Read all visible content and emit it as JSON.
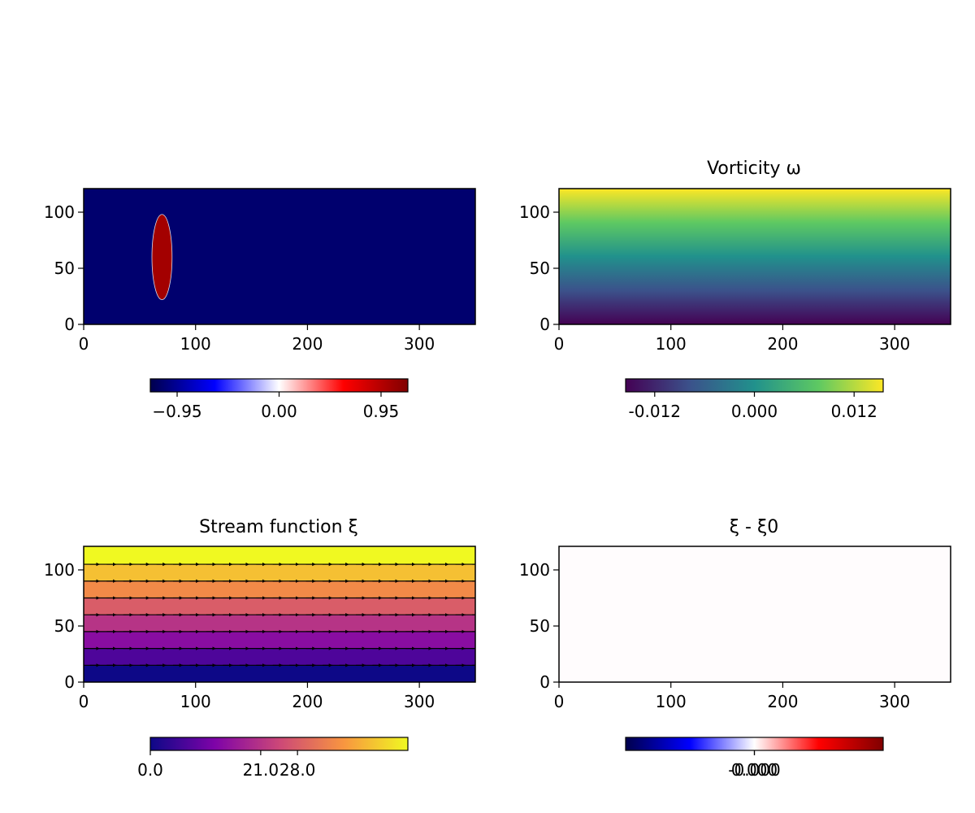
{
  "chart_data": [
    {
      "type": "heatmap",
      "title": "",
      "xlabel": "",
      "ylabel": "",
      "xlim": [
        0,
        350
      ],
      "ylim": [
        0,
        121
      ],
      "xticks": [
        0,
        100,
        200,
        300
      ],
      "yticks": [
        0,
        50,
        100
      ],
      "xtick_labels": [
        "0",
        "100",
        "200",
        "300"
      ],
      "ytick_labels": [
        "0",
        "50",
        "100"
      ],
      "background_value": -0.95,
      "ellipse": {
        "center_x": 70,
        "center_y": 60,
        "semi_x": 9,
        "semi_y": 38,
        "value": 0.95
      },
      "colormap": "seismic",
      "colorbar": {
        "range": [
          -1.2,
          1.2
        ],
        "ticks": [
          -0.95,
          0.0,
          0.95
        ],
        "tick_labels": [
          "−0.95",
          "0.00",
          "0.95"
        ]
      }
    },
    {
      "type": "heatmap",
      "title": "Vorticity ω",
      "xlabel": "",
      "ylabel": "",
      "xlim": [
        0,
        350
      ],
      "ylim": [
        0,
        121
      ],
      "xticks": [
        0,
        100,
        200,
        300
      ],
      "yticks": [
        0,
        50,
        100
      ],
      "xtick_labels": [
        "0",
        "100",
        "200",
        "300"
      ],
      "ytick_labels": [
        "0",
        "50",
        "100"
      ],
      "value_range": [
        -0.0155,
        0.0155
      ],
      "varies_along": "y",
      "colormap": "viridis",
      "colorbar": {
        "range": [
          -0.0155,
          0.0155
        ],
        "ticks": [
          -0.012,
          0.0,
          0.012
        ],
        "tick_labels": [
          "-0.012",
          "0.000",
          "0.012"
        ]
      }
    },
    {
      "type": "heatmap",
      "title": "Stream function ξ",
      "xlabel": "",
      "ylabel": "",
      "xlim": [
        0,
        350
      ],
      "ylim": [
        0,
        121
      ],
      "xticks": [
        0,
        100,
        200,
        300
      ],
      "yticks": [
        0,
        50,
        100
      ],
      "xtick_labels": [
        "0",
        "100",
        "200",
        "300"
      ],
      "ytick_labels": [
        "0",
        "50",
        "100"
      ],
      "band_boundaries": [
        0,
        15,
        30,
        45,
        60,
        75,
        90,
        105,
        121
      ],
      "band_values": [
        0,
        7,
        14,
        21,
        28,
        35,
        42,
        49
      ],
      "contour_levels_y": [
        15,
        30,
        45,
        60,
        75,
        90,
        105
      ],
      "quiver_rows_y": [
        15,
        30,
        45,
        60,
        75,
        90,
        105
      ],
      "quiver_x_start": 10,
      "quiver_x_step": 14.85,
      "quiver_count": 24,
      "colormap": "plasma",
      "colorbar": {
        "range": [
          0,
          49
        ],
        "ticks": [
          0.0,
          21.0,
          28.0
        ],
        "tick_labels": [
          "0.0",
          "21.0",
          "28.0"
        ]
      }
    },
    {
      "type": "heatmap",
      "title": "ξ - ξ0",
      "xlabel": "",
      "ylabel": "",
      "xlim": [
        0,
        350
      ],
      "ylim": [
        0,
        121
      ],
      "xticks": [
        0,
        100,
        200,
        300
      ],
      "yticks": [
        0,
        50,
        100
      ],
      "xtick_labels": [
        "0",
        "100",
        "200",
        "300"
      ],
      "ytick_labels": [
        "0",
        "50",
        "100"
      ],
      "uniform_value": 0.0,
      "colormap": "seismic",
      "colorbar": {
        "range": [
          -1,
          1
        ],
        "ticks": [
          0.0,
          0.0
        ],
        "tick_labels": [
          "-0.000",
          "0.000"
        ]
      }
    }
  ]
}
